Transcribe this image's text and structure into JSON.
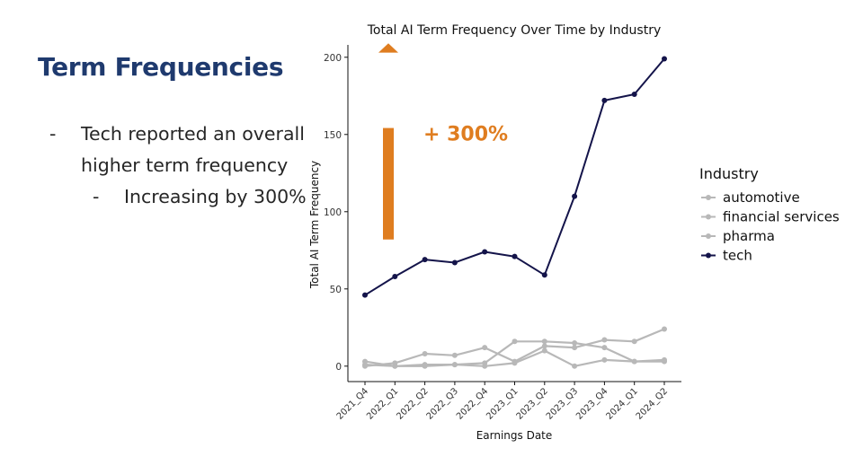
{
  "slide": {
    "title": "Term Frequencies",
    "bullets": [
      {
        "level": 1,
        "text": "Tech reported an overall higher term frequency"
      },
      {
        "level": 2,
        "text": "Increasing by 300%"
      }
    ]
  },
  "annotation": {
    "label": "+ 300%",
    "color": "#df7d20"
  },
  "chart_data": {
    "type": "line",
    "title": "Total AI Term Frequency Over Time by Industry",
    "xlabel": "Earnings Date",
    "ylabel": "Total AI Term Frequency",
    "categories": [
      "2021_Q4",
      "2022_Q1",
      "2022_Q2",
      "2022_Q3",
      "2022_Q4",
      "2023_Q1",
      "2023_Q2",
      "2023_Q3",
      "2023_Q4",
      "2024_Q1",
      "2024_Q2"
    ],
    "ylim": [
      -10,
      208
    ],
    "yticks": [
      0,
      50,
      100,
      150,
      200
    ],
    "grid": false,
    "legend": {
      "title": "Industry",
      "position": "right"
    },
    "series": [
      {
        "name": "automotive",
        "color": "#b8b8b8",
        "values": [
          1,
          0,
          0,
          1,
          0,
          2,
          10,
          0,
          4,
          3,
          4
        ]
      },
      {
        "name": "financial services",
        "color": "#b8b8b8",
        "values": [
          3,
          0,
          1,
          1,
          2,
          16,
          16,
          15,
          12,
          3,
          3
        ]
      },
      {
        "name": "pharma",
        "color": "#b8b8b8",
        "values": [
          0,
          2,
          8,
          7,
          12,
          3,
          13,
          12,
          17,
          16,
          24
        ]
      },
      {
        "name": "tech",
        "color": "#14144a",
        "values": [
          46,
          58,
          69,
          67,
          74,
          71,
          59,
          110,
          172,
          176,
          199
        ]
      }
    ]
  }
}
